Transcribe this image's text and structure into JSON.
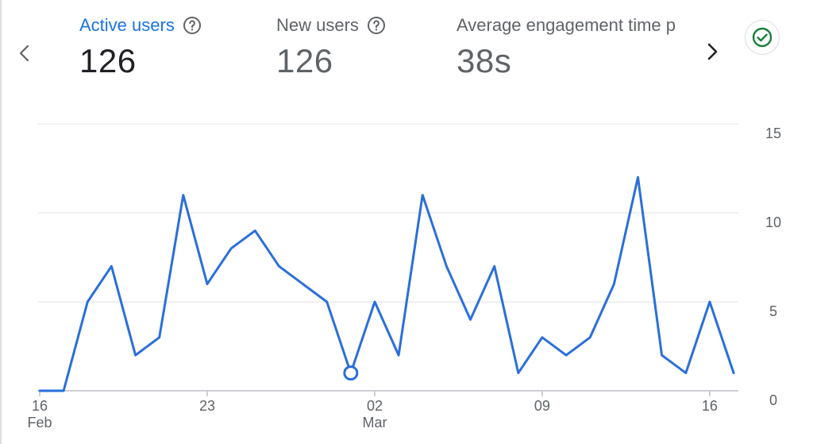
{
  "metrics": [
    {
      "label": "Active users",
      "value": "126",
      "active": true
    },
    {
      "label": "New users",
      "value": "126",
      "active": false
    },
    {
      "label": "Average engagement time p",
      "value": "38s",
      "active": false
    }
  ],
  "icons": {
    "prev": "chevron-left-icon",
    "next": "chevron-right-icon",
    "help": "help-circle-icon",
    "status": "check-circle-icon"
  },
  "colors": {
    "accent": "#1a73e8",
    "status_green": "#188038",
    "line": "#2a6fdb"
  },
  "chart_data": {
    "type": "line",
    "x": [
      "Feb 16",
      "Feb 17",
      "Feb 18",
      "Feb 19",
      "Feb 20",
      "Feb 21",
      "Feb 22",
      "Feb 23",
      "Feb 24",
      "Feb 25",
      "Feb 26",
      "Feb 27",
      "Feb 28",
      "Mar 01",
      "Mar 02",
      "Mar 03",
      "Mar 04",
      "Mar 05",
      "Mar 06",
      "Mar 07",
      "Mar 08",
      "Mar 09",
      "Mar 10",
      "Mar 11",
      "Mar 12",
      "Mar 13",
      "Mar 14",
      "Mar 15",
      "Mar 16",
      "Mar 17"
    ],
    "series": [
      {
        "values": [
          0,
          0,
          5,
          7,
          2,
          3,
          11,
          6,
          8,
          9,
          7,
          6,
          5,
          1,
          5,
          2,
          11,
          7,
          4,
          7,
          1,
          3,
          2,
          3,
          6,
          12,
          2,
          1,
          5,
          1
        ]
      }
    ],
    "highlighted_point": "Mar 01",
    "x_tick_labels": [
      {
        "day": "16",
        "month": "Feb",
        "at": "Feb 16"
      },
      {
        "day": "23",
        "month": "",
        "at": "Feb 23"
      },
      {
        "day": "02",
        "month": "Mar",
        "at": "Mar 02"
      },
      {
        "day": "09",
        "month": "",
        "at": "Mar 09"
      },
      {
        "day": "16",
        "month": "",
        "at": "Mar 16"
      }
    ],
    "y_ticks": [
      "0",
      "5",
      "10",
      "15"
    ],
    "ylim": [
      0,
      15
    ],
    "grid": true,
    "y_axis_side": "right"
  }
}
